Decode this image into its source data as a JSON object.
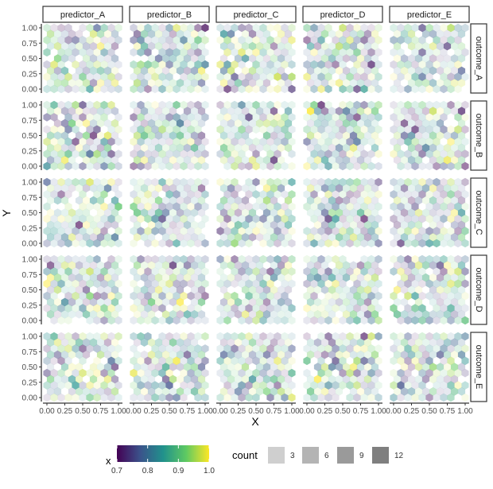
{
  "chart_data": {
    "type": "hexbin-facet-grid",
    "facet_columns": [
      "predictor_A",
      "predictor_B",
      "predictor_C",
      "predictor_D",
      "predictor_E"
    ],
    "facet_rows": [
      "outcome_A",
      "outcome_B",
      "outcome_C",
      "outcome_D",
      "outcome_E"
    ],
    "xlabel": "X",
    "ylabel": "Y",
    "xlim": [
      0,
      1
    ],
    "ylim": [
      0,
      1
    ],
    "x_ticks": [
      "0.00",
      "0.25",
      "0.50",
      "0.75",
      "1.00"
    ],
    "y_ticks": [
      "0.00",
      "0.25",
      "0.50",
      "0.75",
      "1.00"
    ],
    "grid": false,
    "hex_layout": {
      "columns": 11,
      "rows": 11
    },
    "fill_legend": {
      "title": "x",
      "palette": "viridis",
      "range": [
        0.7,
        1.0
      ],
      "ticks": [
        "0.7",
        "0.8",
        "0.9",
        "1.0"
      ],
      "colors": [
        "#440154",
        "#3b528b",
        "#21918c",
        "#5ec962",
        "#fde725"
      ]
    },
    "alpha_legend": {
      "title": "count",
      "entries": [
        {
          "label": "3",
          "value": 3
        },
        {
          "label": "6",
          "value": 6
        },
        {
          "label": "9",
          "value": 9
        },
        {
          "label": "12",
          "value": 12
        }
      ]
    },
    "legend_position": "bottom",
    "hex_bins_note": "Each panel holds ~11x11 hexagonal bins of random-uniform points; count range ~1-12, x-value range 0.7-1.0"
  }
}
